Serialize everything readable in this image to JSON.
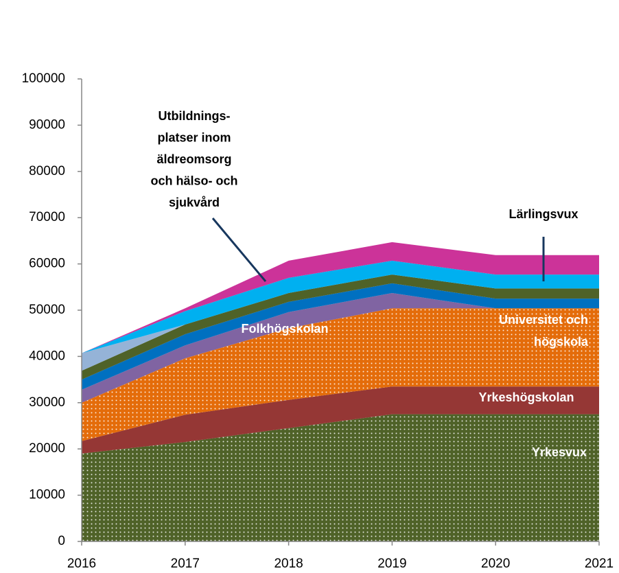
{
  "chart_data": {
    "type": "area",
    "stacked": true,
    "x": [
      2016,
      2017,
      2018,
      2019,
      2020,
      2021
    ],
    "xlim": [
      2016,
      2021
    ],
    "xticks": [
      2016,
      2017,
      2018,
      2019,
      2020,
      2021
    ],
    "ylim": [
      0,
      100000
    ],
    "yticks": [
      0,
      10000,
      20000,
      30000,
      40000,
      50000,
      60000,
      70000,
      80000,
      90000,
      100000
    ],
    "series": [
      {
        "name": [
          "Yrkesvux"
        ],
        "color": "#4f6228",
        "dotted": true,
        "values": [
          19000,
          21500,
          24500,
          27500,
          27500,
          27500
        ]
      },
      {
        "name": [
          "Yrkeshögskolan"
        ],
        "color": "#953735",
        "values": [
          2700,
          5900,
          6100,
          6000,
          6000,
          6000
        ]
      },
      {
        "name": [
          "Universitet och",
          "högskola"
        ],
        "color": "#e46c0a",
        "dotted": true,
        "values": [
          8300,
          12200,
          15500,
          16900,
          16900,
          16900
        ]
      },
      {
        "name": [
          "Folkhögskolan"
        ],
        "color": "#8064a2",
        "values": [
          2800,
          2800,
          3500,
          3300,
          0,
          0
        ]
      },
      {
        "color": "#0070c0",
        "values": [
          2200,
          2400,
          2200,
          2100,
          2100,
          2100
        ]
      },
      {
        "color": "#4f6228",
        "values": [
          1900,
          2100,
          1900,
          1900,
          2200,
          2200
        ]
      },
      {
        "color": "#95b3d7",
        "values": [
          3800,
          0,
          0,
          0,
          0,
          0
        ]
      },
      {
        "name": [
          "Lärlingsvux"
        ],
        "color": "#00b0f0",
        "values": [
          0,
          2900,
          3300,
          3000,
          3000,
          3000
        ]
      },
      {
        "name": [
          "Utbildnings-",
          "platser inom",
          "äldreomsorg",
          "och hälso- och",
          "sjukvård"
        ],
        "color": "#cc3399",
        "values": [
          0,
          600,
          3700,
          4000,
          4200,
          4200
        ]
      }
    ]
  }
}
